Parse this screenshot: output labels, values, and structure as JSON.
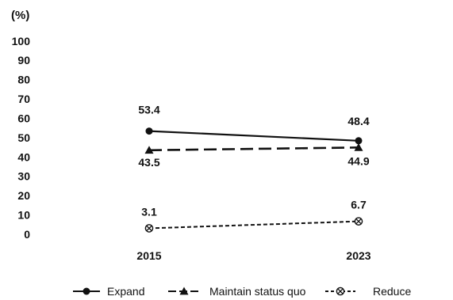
{
  "chart_data": {
    "type": "line",
    "unit_label": "(%)",
    "categories": [
      "2015",
      "2023"
    ],
    "ylim": [
      0,
      100
    ],
    "yticks": [
      0,
      10,
      20,
      30,
      40,
      50,
      60,
      70,
      80,
      90,
      100
    ],
    "grid": false,
    "legend_placement": "bottom",
    "series": [
      {
        "name": "Expand",
        "values": [
          53.4,
          48.4
        ],
        "labels": [
          "53.4",
          "48.4"
        ],
        "line_style": "solid",
        "marker": "circle",
        "color": "#111111"
      },
      {
        "name": "Maintain status quo",
        "values": [
          43.5,
          44.9
        ],
        "labels": [
          "43.5",
          "44.9"
        ],
        "line_style": "long-dash",
        "marker": "triangle",
        "color": "#111111"
      },
      {
        "name": "Reduce",
        "values": [
          3.1,
          6.7
        ],
        "labels": [
          "3.1",
          "6.7"
        ],
        "line_style": "short-dash",
        "marker": "crossed-circle",
        "color": "#111111"
      }
    ]
  }
}
